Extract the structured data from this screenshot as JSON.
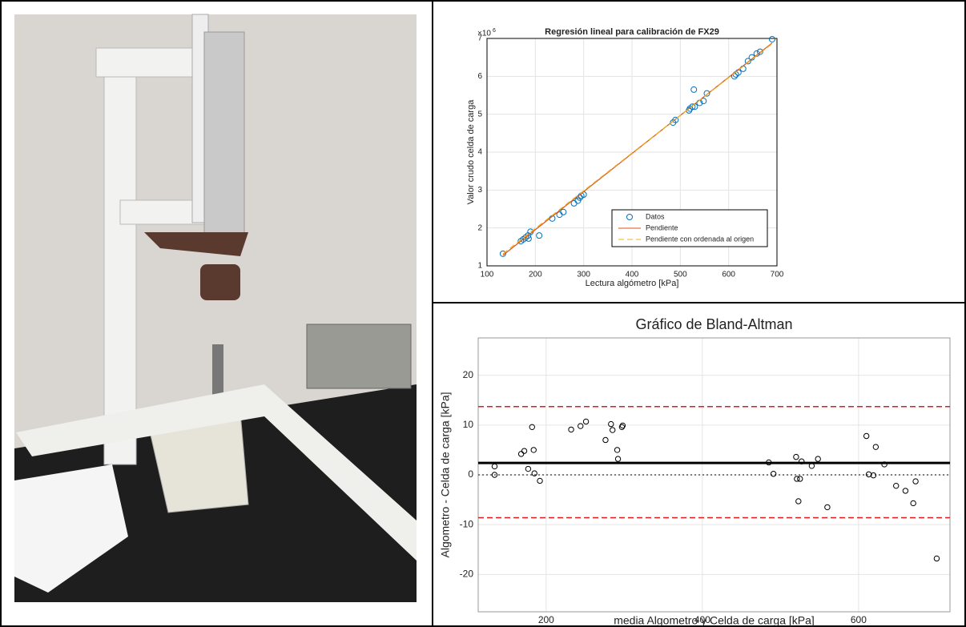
{
  "chart_data": [
    {
      "type": "scatter",
      "title": "Regresión lineal para calibración de FX29",
      "x_label": "Lectura algómetro [kPa]",
      "y_label": "Valor crudo celda de carga",
      "y_multiplier": {
        "base": "×10",
        "exponent": "6"
      },
      "xlim": [
        100,
        700
      ],
      "ylim": [
        1,
        7
      ],
      "xticks": [
        100,
        200,
        300,
        400,
        500,
        600,
        700
      ],
      "yticks": [
        1,
        2,
        3,
        4,
        5,
        6,
        7
      ],
      "grid": true,
      "legend": "lower right",
      "series": [
        {
          "name": "Datos",
          "color": "#0072bd",
          "style": "marker",
          "x": [
            133,
            170,
            175,
            180,
            185,
            186,
            190,
            208,
            235,
            250,
            258,
            280,
            288,
            292,
            295,
            300,
            485,
            490,
            518,
            520,
            525,
            528,
            530,
            540,
            548,
            555,
            612,
            615,
            620,
            630,
            640,
            648,
            658,
            665,
            690
          ],
          "values": [
            1.32,
            1.65,
            1.7,
            1.75,
            1.8,
            1.72,
            1.9,
            1.8,
            2.25,
            2.35,
            2.42,
            2.65,
            2.72,
            2.8,
            2.85,
            2.88,
            4.78,
            4.85,
            5.1,
            5.15,
            5.2,
            5.65,
            5.2,
            5.3,
            5.35,
            5.55,
            6.0,
            6.05,
            6.1,
            6.2,
            6.4,
            6.5,
            6.6,
            6.65,
            6.98
          ]
        },
        {
          "name": "Pendiente",
          "color": "#d95319",
          "style": "line",
          "x": [
            133,
            690
          ],
          "values": [
            1.28,
            6.88
          ]
        },
        {
          "name": "Pendiente con ordenada al origen",
          "color": "#edb120",
          "style": "dashed",
          "x": [
            133,
            690
          ],
          "values": [
            1.32,
            6.86
          ]
        }
      ]
    },
    {
      "type": "scatter",
      "title": "Gráfico de Bland-Altman",
      "x_label": "media Algometro y Celda de carga  [kPa]",
      "y_label": "Algometro - Celda de carga  [kPa]",
      "xlim": [
        113,
        717
      ],
      "ylim": [
        -27.5,
        27.5
      ],
      "xticks": [
        200,
        400,
        600
      ],
      "yticks": [
        -20,
        -10,
        0,
        10,
        20
      ],
      "grid": true,
      "reference_lines": [
        {
          "value": 2.4,
          "color": "#000000",
          "style": "solid"
        },
        {
          "value": 13.7,
          "color": "#e31a1c",
          "style": "dashed"
        },
        {
          "value": -8.6,
          "color": "#e31a1c",
          "style": "dashed"
        },
        {
          "value": 0,
          "color": "#555555",
          "style": "dotted"
        }
      ],
      "series": [
        {
          "color": "#000000",
          "style": "marker",
          "x": [
            134,
            134,
            168,
            172,
            177,
            182,
            184,
            185,
            192,
            232,
            244,
            251,
            276,
            283,
            285,
            291,
            292,
            297,
            298,
            485,
            491,
            520,
            521,
            523,
            525,
            527,
            540,
            548,
            560,
            610,
            613,
            619,
            622,
            633,
            648,
            660,
            670,
            673,
            700
          ],
          "values": [
            1.7,
            0,
            4.2,
            4.8,
            1.2,
            9.6,
            5.0,
            0.3,
            -1.2,
            9.1,
            9.8,
            10.7,
            7.0,
            10.2,
            9.0,
            5.0,
            3.2,
            9.6,
            9.9,
            2.5,
            0.2,
            3.6,
            -0.8,
            -5.3,
            -0.8,
            2.7,
            1.8,
            3.2,
            -6.5,
            7.8,
            0.1,
            -0.1,
            5.6,
            2.1,
            -2.2,
            -3.2,
            -5.7,
            -1.3,
            -16.8
          ]
        }
      ]
    }
  ]
}
